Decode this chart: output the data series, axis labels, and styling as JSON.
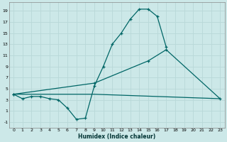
{
  "xlabel": "Humidex (Indice chaleur)",
  "background_color": "#cce8e8",
  "grid_color": "#b8d8d8",
  "line_color": "#006666",
  "xlim": [
    -0.5,
    23.5
  ],
  "ylim": [
    -2,
    20.5
  ],
  "xticks": [
    0,
    1,
    2,
    3,
    4,
    5,
    6,
    7,
    8,
    9,
    10,
    11,
    12,
    13,
    14,
    15,
    16,
    17,
    18,
    19,
    20,
    21,
    22,
    23
  ],
  "yticks": [
    -1,
    1,
    3,
    5,
    7,
    9,
    11,
    13,
    15,
    17,
    19
  ],
  "line1_x": [
    0,
    1,
    2,
    3,
    4,
    5,
    6,
    7,
    8,
    9,
    10,
    11,
    12,
    13,
    14,
    15,
    16,
    17
  ],
  "line1_y": [
    4,
    3.2,
    3.6,
    3.6,
    3.2,
    3.0,
    1.5,
    -0.5,
    -0.3,
    5.5,
    9,
    13,
    15,
    17.5,
    19.3,
    19.3,
    18,
    12.5
  ],
  "line2_x": [
    0,
    9,
    15,
    17,
    23
  ],
  "line2_y": [
    4,
    6,
    10,
    12,
    3.2
  ],
  "line3_x": [
    0,
    9,
    23
  ],
  "line3_y": [
    4,
    4,
    3.2
  ]
}
